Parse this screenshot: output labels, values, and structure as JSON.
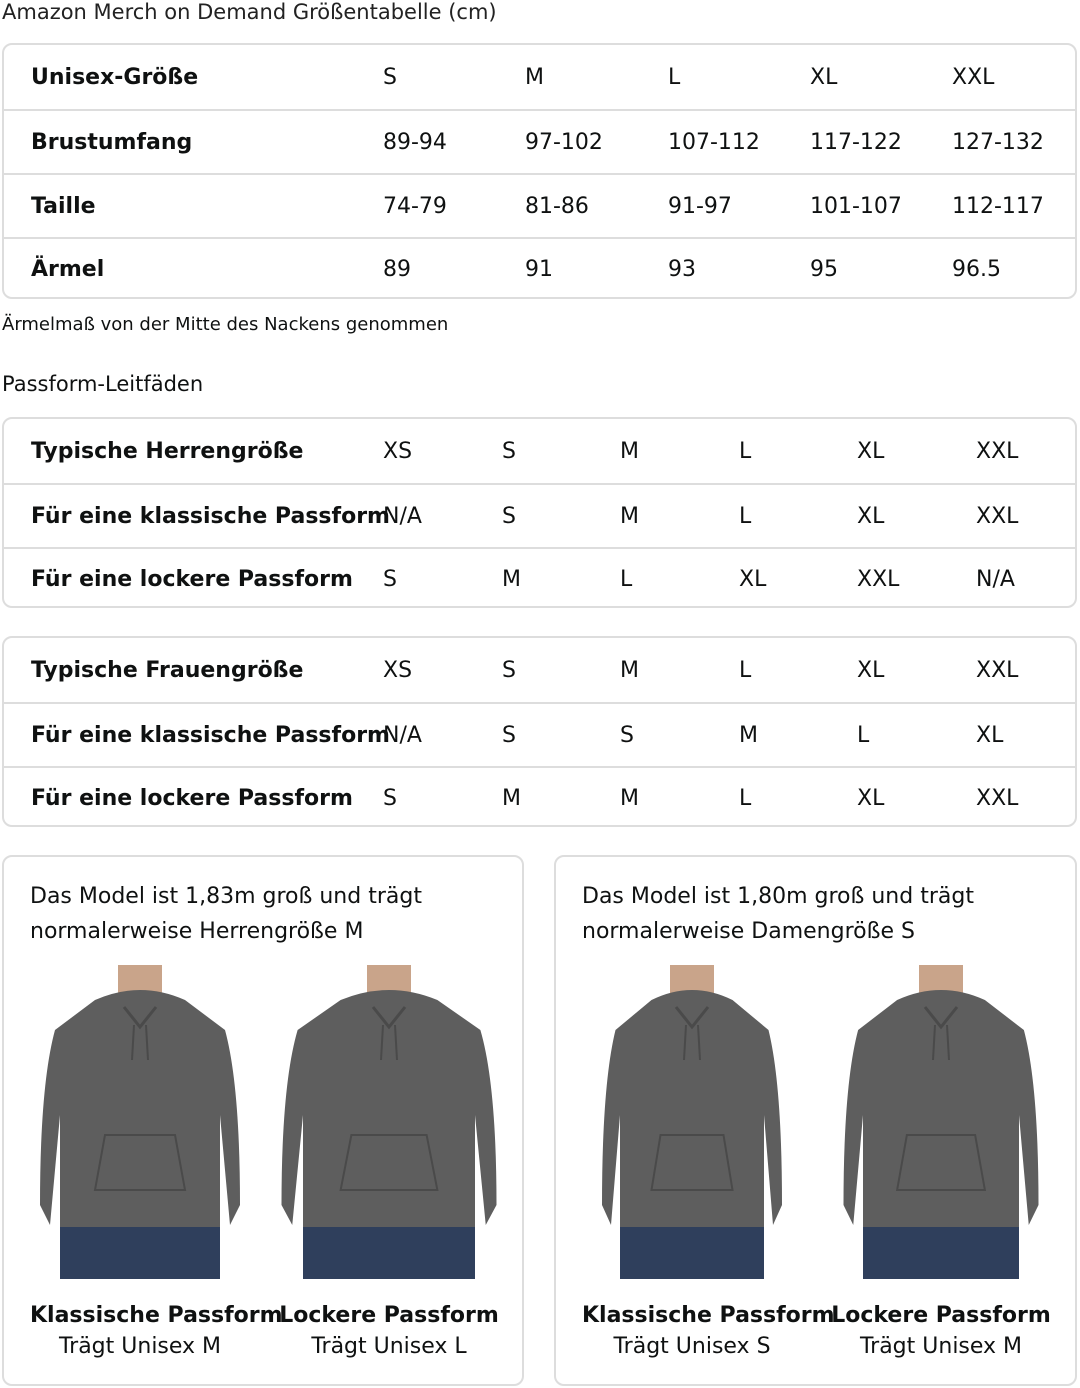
{
  "title": "Amazon Merch on Demand Größentabelle (cm)",
  "size_table": {
    "rows": [
      {
        "label": "Unisex-Größe",
        "values": [
          "S",
          "M",
          "L",
          "XL",
          "XXL"
        ]
      },
      {
        "label": "Brustumfang",
        "values": [
          "89-94",
          "97-102",
          "107-112",
          "117-122",
          "127-132"
        ]
      },
      {
        "label": "Taille",
        "values": [
          "74-79",
          "81-86",
          "91-97",
          "101-107",
          "112-117"
        ]
      },
      {
        "label": "Ärmel",
        "values": [
          "89",
          "91",
          "93",
          "95",
          "96.5"
        ]
      }
    ]
  },
  "note": "Ärmelmaß von der Mitte des Nackens genommen",
  "fit_title": "Passform-Leitfäden",
  "men_table": {
    "rows": [
      {
        "label": "Typische Herrengröße",
        "values": [
          "XS",
          "S",
          "M",
          "L",
          "XL",
          "XXL"
        ]
      },
      {
        "label": "Für eine klassische Passform",
        "values": [
          "N/A",
          "S",
          "M",
          "L",
          "XL",
          "XXL"
        ]
      },
      {
        "label": "Für eine lockere Passform",
        "values": [
          "S",
          "M",
          "L",
          "XL",
          "XXL",
          "N/A"
        ]
      }
    ]
  },
  "women_table": {
    "rows": [
      {
        "label": "Typische Frauengröße",
        "values": [
          "XS",
          "S",
          "M",
          "L",
          "XL",
          "XXL"
        ]
      },
      {
        "label": "Für eine klassische Passform",
        "values": [
          "N/A",
          "S",
          "S",
          "M",
          "L",
          "XL"
        ]
      },
      {
        "label": "Für eine lockere Passform",
        "values": [
          "S",
          "M",
          "M",
          "L",
          "XL",
          "XXL"
        ]
      }
    ]
  },
  "cards": [
    {
      "desc": "Das Model ist 1,83m groß und trägt normalerweise Herrengröße M",
      "figures": [
        {
          "name": "Klassische Passform",
          "size": "Trägt Unisex M"
        },
        {
          "name": "Lockere Passform",
          "size": "Trägt Unisex L"
        }
      ]
    },
    {
      "desc": "Das Model ist 1,80m groß und trägt normalerweise Damengröße S",
      "figures": [
        {
          "name": "Klassische Passform",
          "size": "Trägt Unisex S"
        },
        {
          "name": "Lockere Passform",
          "size": "Trägt Unisex M"
        }
      ]
    }
  ],
  "colors": {
    "hoodie": "#5e5e5e",
    "jeans": "#2f3f5c",
    "skin": "#c9a48a",
    "border": "#dddddd"
  }
}
